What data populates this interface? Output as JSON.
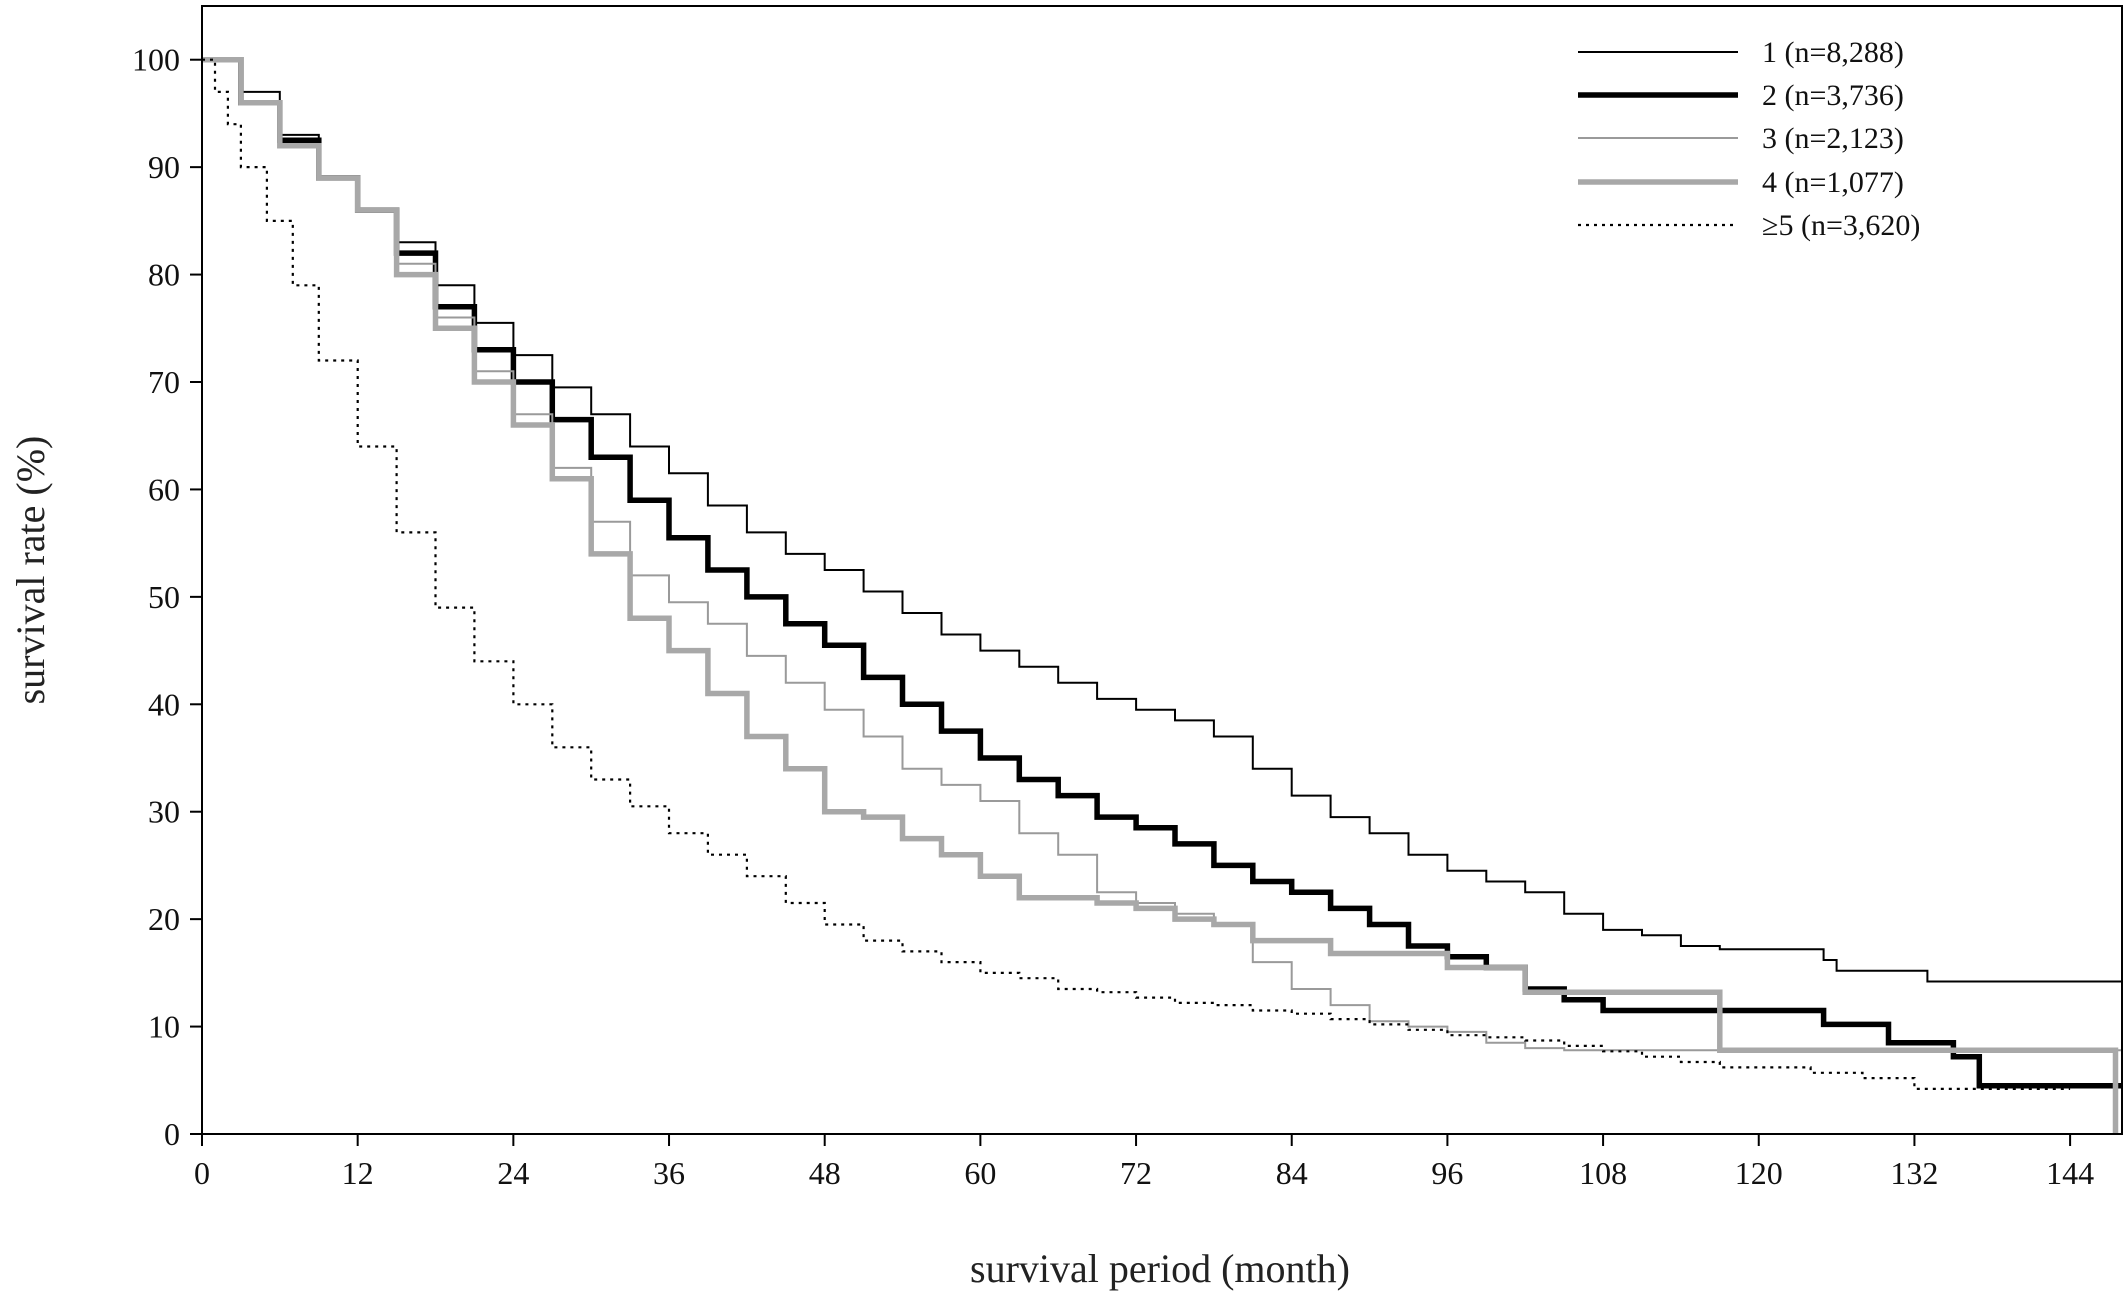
{
  "chart_data": {
    "type": "line",
    "step": true,
    "xlabel": "survival period (month)",
    "ylabel": "survival rate (%)",
    "xlim": [
      0,
      148
    ],
    "ylim": [
      0,
      105
    ],
    "xticks": [
      0,
      12,
      24,
      36,
      48,
      60,
      72,
      84,
      96,
      108,
      120,
      132,
      144
    ],
    "yticks": [
      0,
      10,
      20,
      30,
      40,
      50,
      60,
      70,
      80,
      90,
      100
    ],
    "grid": false,
    "legend_position": "top-right",
    "series": [
      {
        "name": "1 (n=8,288)",
        "color": "#000000",
        "line_style": "thin-solid",
        "x": [
          0,
          3,
          6,
          9,
          12,
          15,
          18,
          21,
          24,
          27,
          30,
          33,
          36,
          39,
          42,
          45,
          48,
          51,
          54,
          57,
          60,
          63,
          66,
          69,
          72,
          75,
          78,
          81,
          84,
          87,
          90,
          93,
          96,
          99,
          102,
          105,
          108,
          111,
          114,
          117,
          120,
          123,
          125,
          126,
          130,
          133,
          136,
          140,
          144,
          148
        ],
        "y": [
          100,
          97,
          93,
          89,
          86,
          83,
          79,
          75.5,
          72.5,
          69.5,
          67,
          64,
          61.5,
          58.5,
          56,
          54,
          52.5,
          50.5,
          48.5,
          46.5,
          45,
          43.5,
          42,
          40.5,
          39.5,
          38.5,
          37,
          34,
          31.5,
          29.5,
          28,
          26,
          24.5,
          23.5,
          22.5,
          20.5,
          19,
          18.5,
          17.5,
          17.2,
          17.2,
          17.2,
          16.2,
          15.2,
          15.2,
          14.2,
          14.2,
          14.2,
          14.2,
          14.2
        ]
      },
      {
        "name": "2 (n=3,736)",
        "color": "#000000",
        "line_style": "thick-solid",
        "x": [
          0,
          3,
          6,
          9,
          12,
          15,
          18,
          21,
          24,
          27,
          30,
          33,
          36,
          39,
          42,
          45,
          48,
          51,
          54,
          57,
          60,
          63,
          66,
          69,
          72,
          75,
          78,
          81,
          84,
          87,
          90,
          93,
          96,
          99,
          102,
          105,
          108,
          111,
          114,
          117,
          120,
          123,
          125,
          128,
          130,
          133,
          135,
          137,
          140,
          144,
          148
        ],
        "y": [
          100,
          96,
          92.5,
          89,
          86,
          82,
          77,
          73,
          70,
          66.5,
          63,
          59,
          55.5,
          52.5,
          50,
          47.5,
          45.5,
          42.5,
          40,
          37.5,
          35,
          33,
          31.5,
          29.5,
          28.5,
          27,
          25,
          23.5,
          22.5,
          21,
          19.5,
          17.5,
          16.5,
          15.5,
          13.5,
          12.5,
          11.5,
          11.5,
          11.5,
          11.5,
          11.5,
          11.5,
          10.2,
          10.2,
          8.5,
          8.5,
          7.2,
          4.5,
          4.5,
          4.5,
          4.5
        ]
      },
      {
        "name": "3 (n=2,123)",
        "color": "#9a9a9a",
        "line_style": "thin-solid",
        "x": [
          0,
          3,
          6,
          9,
          12,
          15,
          18,
          21,
          24,
          27,
          30,
          33,
          36,
          39,
          42,
          45,
          48,
          51,
          54,
          57,
          60,
          63,
          66,
          69,
          72,
          75,
          78,
          81,
          84,
          87,
          90,
          93,
          96,
          99,
          102,
          105,
          108,
          111,
          114,
          117,
          120,
          124,
          128,
          132,
          136,
          140,
          144,
          148
        ],
        "y": [
          100,
          96,
          92,
          89,
          86,
          81,
          76,
          71,
          67,
          62,
          57,
          52,
          49.5,
          47.5,
          44.5,
          42,
          39.5,
          37,
          34,
          32.5,
          31,
          28,
          26,
          22.5,
          21.5,
          20.5,
          19.5,
          16,
          13.5,
          12,
          10.5,
          10,
          9.5,
          8.5,
          8,
          7.8,
          7.8,
          7.8,
          7.8,
          7.8,
          7.8,
          7.8,
          7.8,
          7.8,
          7.8,
          7.8,
          7.8,
          7.8
        ]
      },
      {
        "name": "4 (n=1,077)",
        "color": "#a8a8a8",
        "line_style": "thick-solid",
        "x": [
          0,
          3,
          6,
          9,
          12,
          15,
          18,
          21,
          24,
          27,
          30,
          33,
          36,
          39,
          42,
          45,
          48,
          51,
          54,
          57,
          60,
          63,
          66,
          69,
          72,
          75,
          78,
          81,
          84,
          87,
          90,
          93,
          96,
          99,
          102,
          105,
          108,
          111,
          114,
          117,
          120,
          124,
          128,
          132,
          136,
          140,
          144,
          147.5
        ],
        "y": [
          100,
          96,
          92,
          89,
          86,
          80,
          75,
          70,
          66,
          61,
          54,
          48,
          45,
          41,
          37,
          34,
          30,
          29.5,
          27.5,
          26,
          24,
          22,
          22,
          21.5,
          21,
          20,
          19.5,
          18,
          18,
          16.8,
          16.8,
          16.8,
          15.5,
          15.5,
          13.2,
          13.2,
          13.2,
          13.2,
          13.2,
          7.8,
          7.8,
          7.8,
          7.8,
          7.8,
          7.8,
          7.8,
          7.8,
          0
        ]
      },
      {
        "name": "≥5 (n=3,620)",
        "color": "#000000",
        "line_style": "dotted",
        "x": [
          0,
          1,
          2,
          3,
          5,
          7,
          9,
          12,
          15,
          18,
          21,
          24,
          27,
          30,
          33,
          36,
          39,
          42,
          45,
          48,
          51,
          54,
          57,
          60,
          63,
          66,
          69,
          72,
          75,
          78,
          81,
          84,
          87,
          90,
          93,
          96,
          99,
          102,
          105,
          108,
          111,
          114,
          117,
          120,
          124,
          128,
          132,
          136,
          140,
          144
        ],
        "y": [
          100,
          97,
          94,
          90,
          85,
          79,
          72,
          64,
          56,
          49,
          44,
          40,
          36,
          33,
          30.5,
          28,
          26,
          24,
          21.5,
          19.5,
          18,
          17,
          16,
          15,
          14.5,
          13.5,
          13.2,
          12.7,
          12.2,
          12,
          11.5,
          11.2,
          10.7,
          10.2,
          9.7,
          9.2,
          9,
          8.7,
          8.2,
          7.7,
          7.2,
          6.7,
          6.2,
          6.2,
          5.7,
          5.2,
          4.2,
          4.2,
          4.2,
          4.2
        ]
      }
    ]
  }
}
